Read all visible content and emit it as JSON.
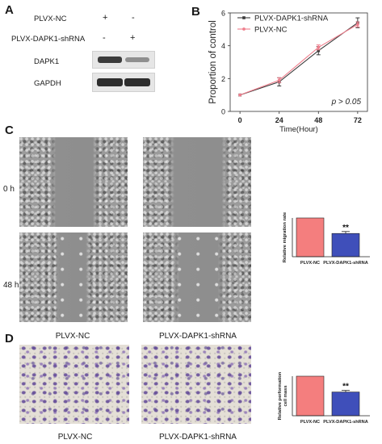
{
  "panels": {
    "a": "A",
    "b": "B",
    "c": "C",
    "d": "D"
  },
  "blot": {
    "groups": [
      "PLVX-NC",
      "PLVX-DAPK1-shRNA"
    ],
    "lanes": [
      {
        "plvx_nc": "+",
        "plvx_dapk1_shrna": "-"
      },
      {
        "plvx_nc": "-",
        "plvx_dapk1_shrna": "+"
      }
    ],
    "bands": [
      "DAPK1",
      "GAPDH"
    ]
  },
  "wound": {
    "rows": [
      "0 h",
      "48 h"
    ],
    "columns": [
      "PLVX-NC",
      "PLVX-DAPK1-shRNA"
    ]
  },
  "transwell": {
    "columns": [
      "PLVX-NC",
      "PLVX-DAPK1-shRNA"
    ]
  },
  "chart_data": [
    {
      "panel": "B",
      "type": "line",
      "x": [
        0,
        24,
        48,
        72
      ],
      "xlabel": "Time(Hour)",
      "ylabel": "Proportion of control",
      "xlim": [
        -6,
        78
      ],
      "ylim": [
        0,
        6
      ],
      "yticks": [
        0,
        2,
        4,
        6
      ],
      "legend": "top-left",
      "annotation": "p > 0.05",
      "series": [
        {
          "name": "PLVX-DAPK1-shRNA",
          "values": [
            1.0,
            1.8,
            3.7,
            5.4
          ],
          "errors": [
            0.0,
            0.25,
            0.25,
            0.3
          ],
          "color": "#3a3a3a",
          "marker": "square"
        },
        {
          "name": "PLVX-NC",
          "values": [
            1.0,
            1.9,
            3.9,
            5.3
          ],
          "errors": [
            0.0,
            0.15,
            0.15,
            0.15
          ],
          "color": "#ef7f8d",
          "marker": "circle"
        }
      ]
    },
    {
      "panel": "C",
      "type": "bar",
      "categories": [
        "PLVX-NC",
        "PLVX-DAPK1-shRNA"
      ],
      "values": [
        1.0,
        0.6
      ],
      "errors": [
        0.0,
        0.05
      ],
      "colors": [
        "#f47e7e",
        "#3f4fba"
      ],
      "ylabel": "Relative migration rate",
      "ylim": [
        0,
        1.0
      ],
      "significance": [
        "",
        "**"
      ]
    },
    {
      "panel": "D",
      "type": "bar",
      "categories": [
        "PLVX-NC",
        "PLVX-DAPK1-shRNA"
      ],
      "values": [
        1.0,
        0.6
      ],
      "errors": [
        0.0,
        0.04
      ],
      "colors": [
        "#f47e7e",
        "#3f4fba"
      ],
      "ylabel": [
        "Relative performation",
        "cell mass"
      ],
      "ylim": [
        0,
        1.0
      ],
      "significance": [
        "",
        "**"
      ]
    }
  ]
}
